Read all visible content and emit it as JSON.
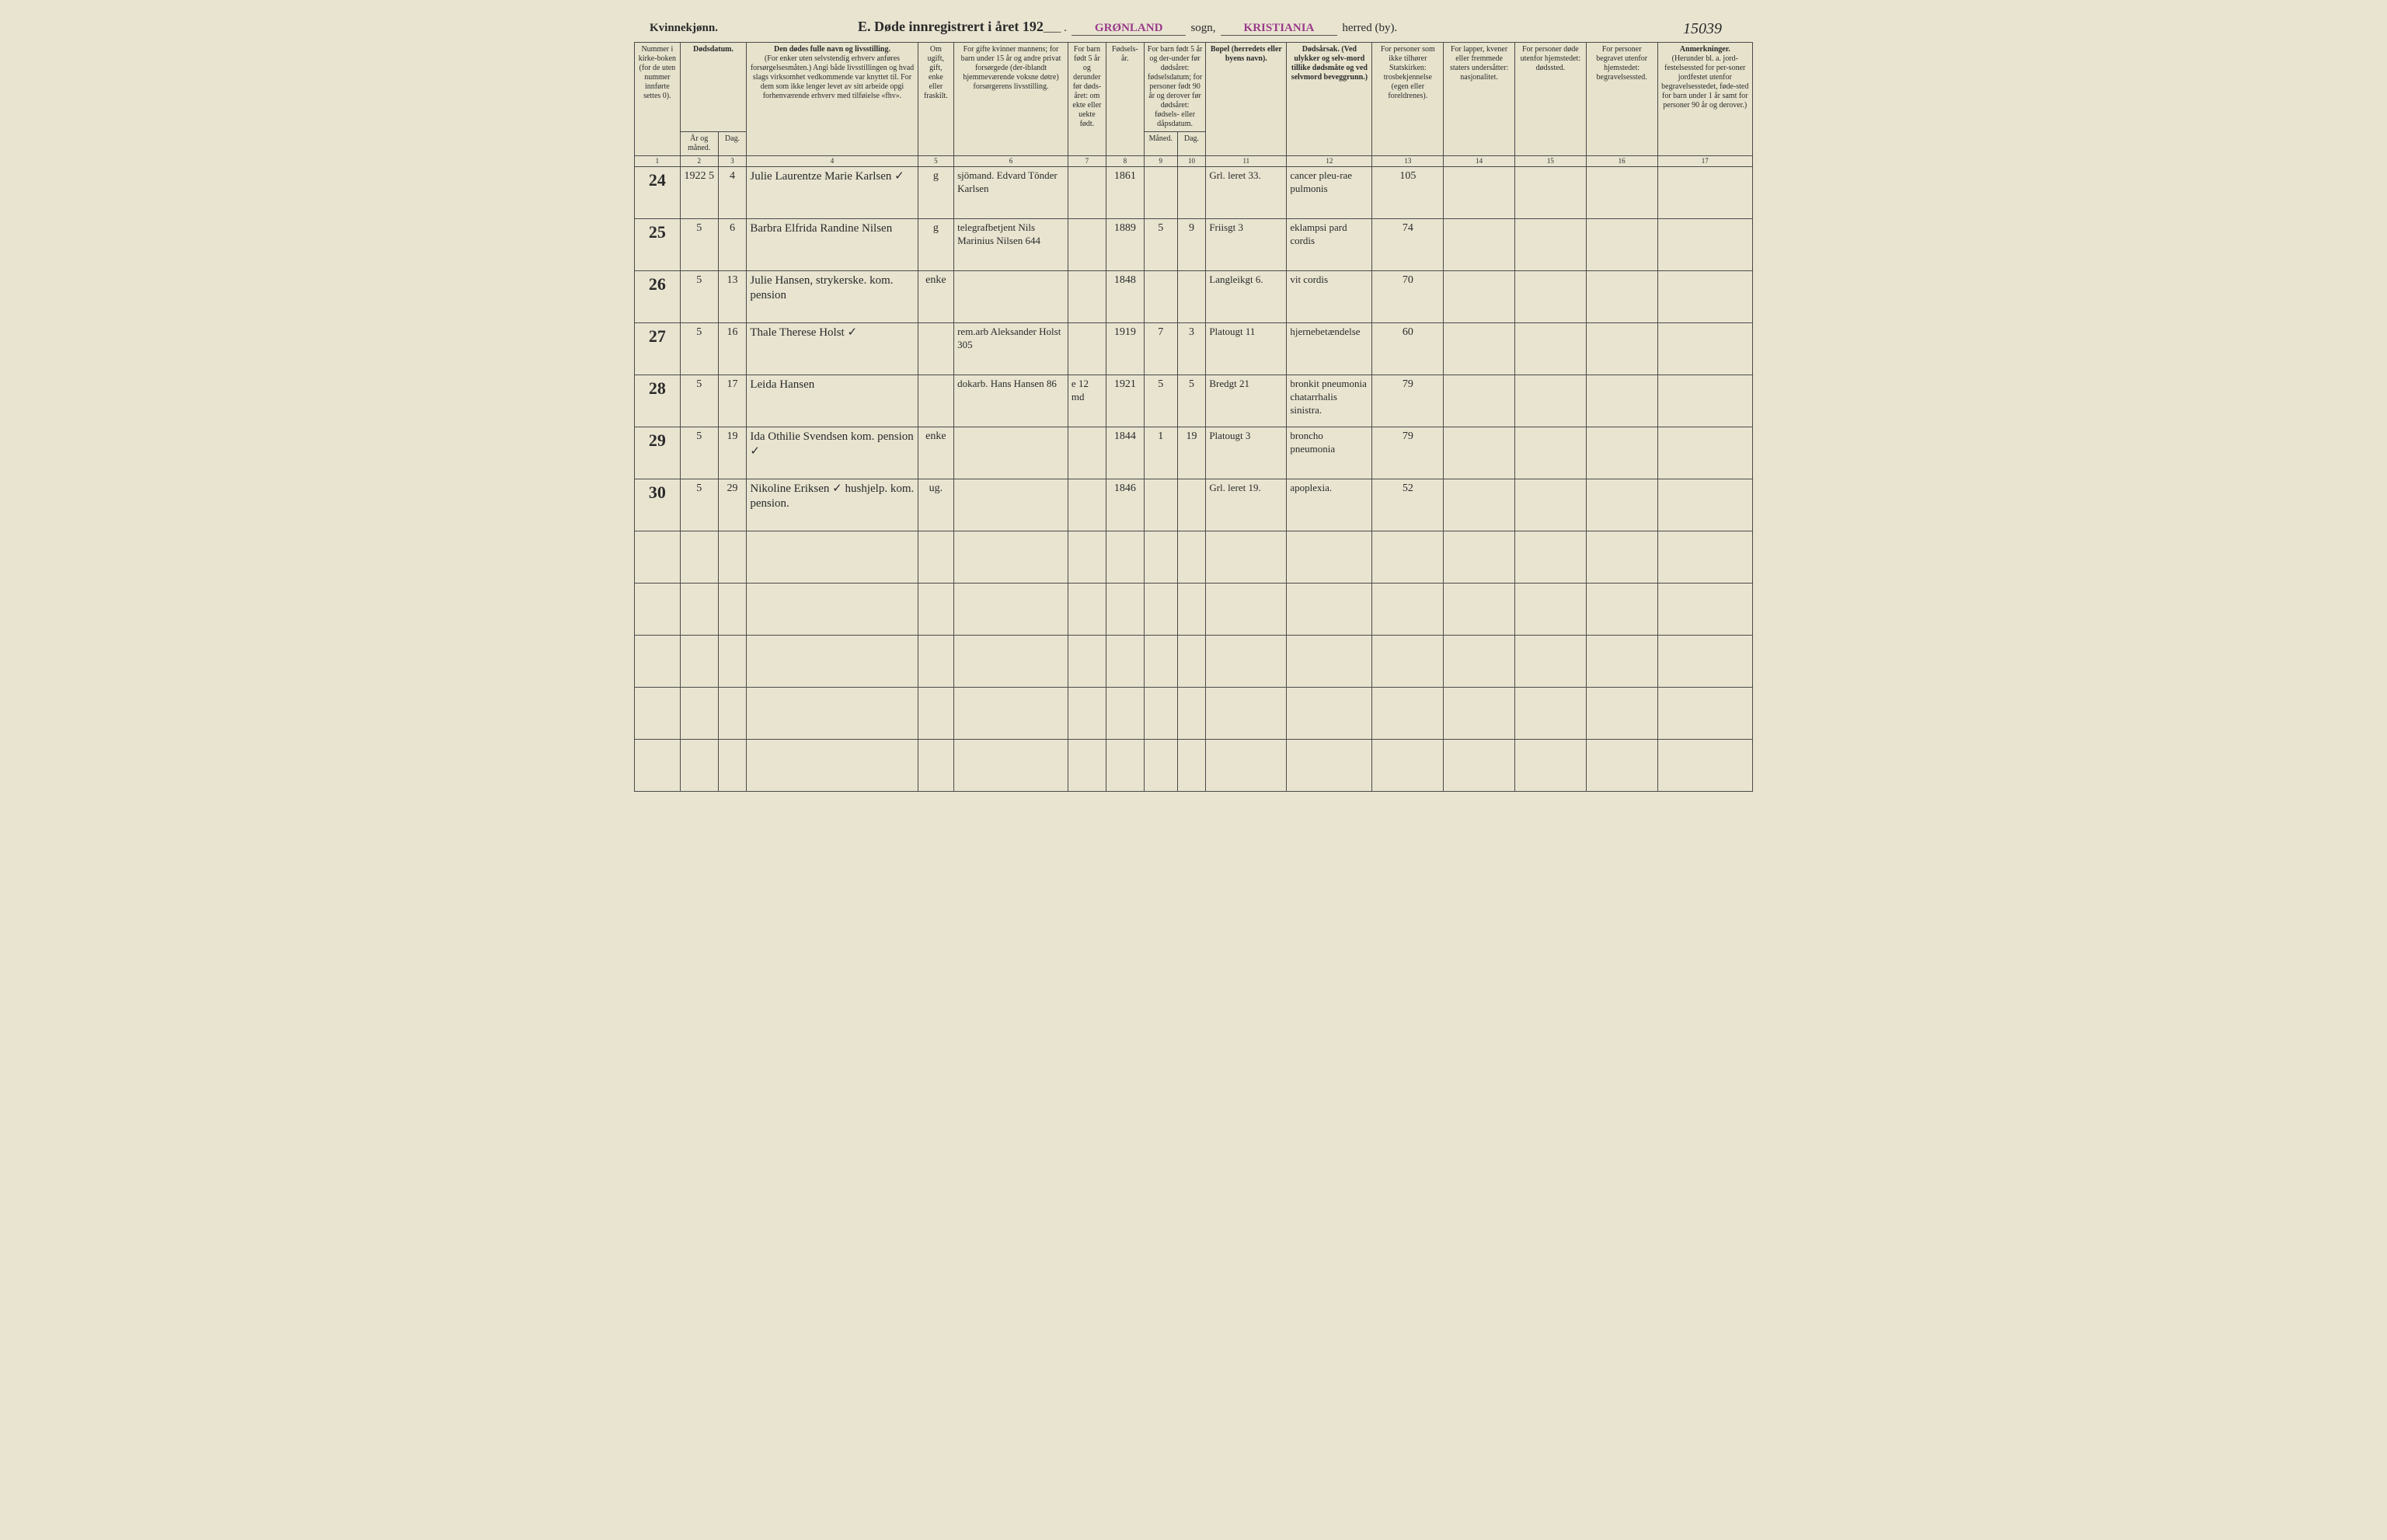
{
  "header": {
    "gender": "Kvinnekjønn.",
    "title_prefix": "E.  Døde innregistrert i året 192",
    "parish": "GRØNLAND",
    "parish_label": "sogn,",
    "district": "KRISTIANIA",
    "district_label": "herred (by).",
    "page_ref": "15039"
  },
  "columns": {
    "c1": "Nummer i kirke-boken (for de uten nummer innførte settes 0).",
    "c2": "Dødsdatum.",
    "c2a": "År og måned.",
    "c2b": "Dag.",
    "c4": "Den dødes fulle navn og livsstilling.",
    "c4_sub": "(For enker uten selvstendig erhverv anføres forsørgelsesmåten.) Angi både livsstillingen og hvad slags virksomhet vedkommende var knyttet til. For dem som ikke lenger levet av sitt arbeide opgi forhenværende erhverv med tilføielse «fhv».",
    "c5": "Om ugift, gift, enke eller fraskilt.",
    "c6": "For gifte kvinner mannens; for barn under 15 år og andre privat forsørgede (der-iblandt hjemmeværende voksne døtre) forsørgerens livsstilling.",
    "c7": "For barn født 5 år og derunder før døds-året: om ekte eller uekte født.",
    "c8": "Fødsels-år.",
    "c9": "For barn født 5 år og der-under før dødsåret: fødselsdatum; for personer født 90 år og derover før dødsåret: fødsels- eller dåpsdatum.",
    "c9a": "Måned.",
    "c9b": "Dag.",
    "c11": "Bopel (herredets eller byens navn).",
    "c12": "Dødsårsak. (Ved ulykker og selv-mord tillike dødsmåte og ved selvmord beveggrunn.)",
    "c13": "For personer som ikke tilhører Statskirken: trosbekjennelse (egen eller foreldrenes).",
    "c14": "For lapper, kvener eller fremmede staters undersåtter: nasjonalitet.",
    "c15": "For personer døde utenfor hjemstedet: dødssted.",
    "c16": "For personer begravet utenfor hjemstedet: begravelsessted.",
    "c17": "Anmerkninger.",
    "c17_sub": "(Herunder bl. a. jord-festelsessted for per-soner jordfestet utenfor begravelsesstedet, føde-sted for barn under 1 år samt for personer 90 år og derover.)"
  },
  "colnums": [
    "1",
    "2",
    "3",
    "4",
    "5",
    "6",
    "7",
    "8",
    "9",
    "10",
    "11",
    "12",
    "13",
    "14",
    "15",
    "16",
    "17"
  ],
  "rows": [
    {
      "num": "24",
      "year": "1922  5",
      "day": "4",
      "name": "Julie Laurentze Marie Karlsen   ✓",
      "status": "g",
      "spouse": "sjömand. Edvard Tönder Karlsen",
      "born_before": "",
      "birth_year": "1861",
      "b_m": "",
      "b_d": "",
      "residence": "Grl. leret 33.",
      "cause": "cancer pleu-rae pulmonis",
      "c13": "105",
      "c14": "",
      "c15": "",
      "c16": "",
      "c17": ""
    },
    {
      "num": "25",
      "year": "5",
      "day": "6",
      "name": "Barbra Elfrida Randine Nilsen",
      "status": "g",
      "spouse": "telegrafbetjent Nils Marinius Nilsen  644",
      "born_before": "",
      "birth_year": "1889",
      "b_m": "5",
      "b_d": "9",
      "residence": "Friisgt 3",
      "cause": "eklampsi pard cordis",
      "c13": "74",
      "c14": "",
      "c15": "",
      "c16": "",
      "c17": ""
    },
    {
      "num": "26",
      "year": "5",
      "day": "13",
      "name": "Julie Hansen, strykerske. kom. pension",
      "status": "enke",
      "spouse": "",
      "born_before": "",
      "birth_year": "1848",
      "b_m": "",
      "b_d": "",
      "residence": "Langleikgt 6.",
      "cause": "vit cordis",
      "c13": "70",
      "c14": "",
      "c15": "",
      "c16": "",
      "c17": ""
    },
    {
      "num": "27",
      "year": "5",
      "day": "16",
      "name": "Thale Therese Holst ✓",
      "status": "",
      "spouse": "rem.arb Aleksander Holst  305",
      "born_before": "",
      "birth_year": "1919",
      "b_m": "7",
      "b_d": "3",
      "residence": "Platougt 11",
      "cause": "hjernebetændelse",
      "c13": "60",
      "c14": "",
      "c15": "",
      "c16": "",
      "c17": ""
    },
    {
      "num": "28",
      "year": "5",
      "day": "17",
      "name": "Leida Hansen",
      "status": "",
      "spouse": "dokarb. Hans Hansen  86",
      "born_before": "e  12 md",
      "birth_year": "1921",
      "b_m": "5",
      "b_d": "5",
      "residence": "Bredgt 21",
      "cause": "bronkit pneumonia chatarrhalis sinistra.",
      "c13": "79",
      "c14": "",
      "c15": "",
      "c16": "",
      "c17": ""
    },
    {
      "num": "29",
      "year": "5",
      "day": "19",
      "name": "Ida Othilie Svendsen kom. pension  ✓",
      "status": "enke",
      "spouse": "",
      "born_before": "",
      "birth_year": "1844",
      "b_m": "1",
      "b_d": "19",
      "residence": "Platougt 3",
      "cause": "broncho pneumonia",
      "c13": "79",
      "c14": "",
      "c15": "",
      "c16": "",
      "c17": ""
    },
    {
      "num": "30",
      "year": "5",
      "day": "29",
      "name": "Nikoline Eriksen ✓ hushjelp.  kom. pension.",
      "status": "ug.",
      "spouse": "",
      "born_before": "",
      "birth_year": "1846",
      "b_m": "",
      "b_d": "",
      "residence": "Grl. leret 19.",
      "cause": "apoplexia.",
      "c13": "52",
      "c14": "",
      "c15": "",
      "c16": "",
      "c17": ""
    }
  ],
  "blank_rows": 5
}
